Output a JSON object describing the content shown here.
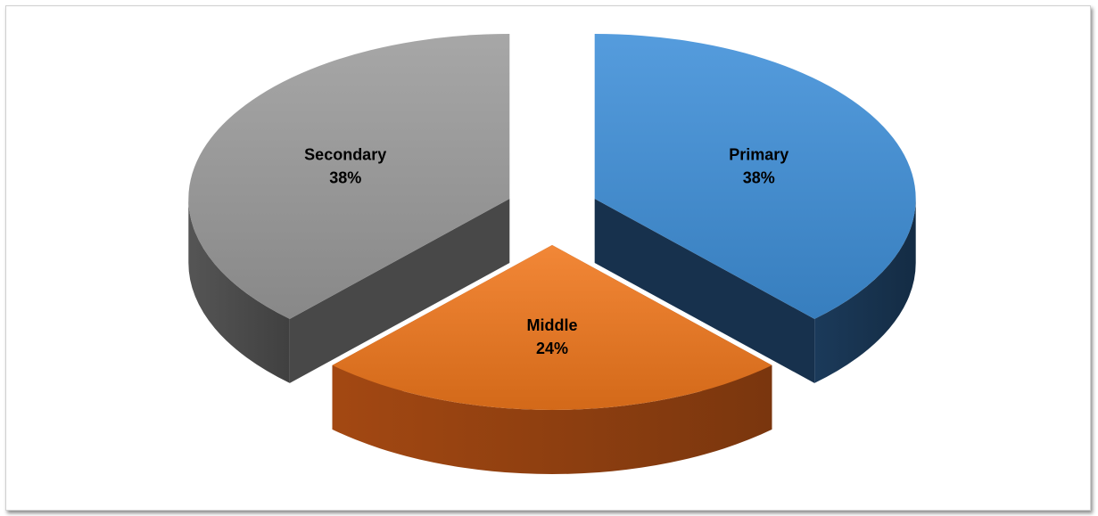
{
  "chart_data": {
    "type": "pie",
    "style": "3d-exploded",
    "title": "",
    "slices": [
      {
        "name": "Primary",
        "value": 38,
        "percent_label": "38%",
        "color": "#3E8FD8",
        "side_color": "#1B3A5A"
      },
      {
        "name": "Middle",
        "value": 24,
        "percent_label": "24%",
        "color": "#F0771C",
        "side_color": "#A34812"
      },
      {
        "name": "Secondary",
        "value": 38,
        "percent_label": "38%",
        "color": "#9B9B9B",
        "side_color": "#555555"
      }
    ],
    "legend": "none"
  }
}
